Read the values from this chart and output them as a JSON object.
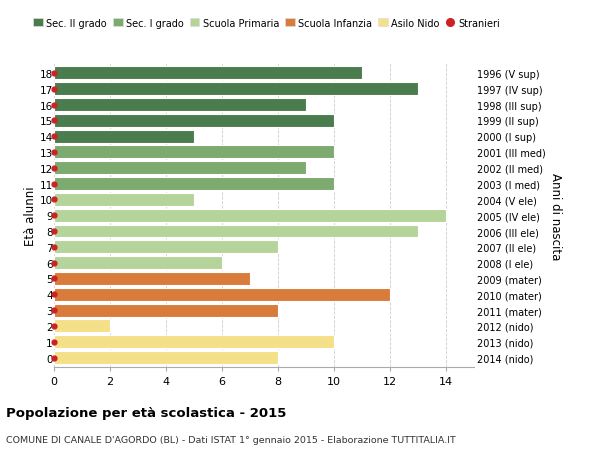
{
  "ages": [
    18,
    17,
    16,
    15,
    14,
    13,
    12,
    11,
    10,
    9,
    8,
    7,
    6,
    5,
    4,
    3,
    2,
    1,
    0
  ],
  "right_labels": [
    "1996 (V sup)",
    "1997 (IV sup)",
    "1998 (III sup)",
    "1999 (II sup)",
    "2000 (I sup)",
    "2001 (III med)",
    "2002 (II med)",
    "2003 (I med)",
    "2004 (V ele)",
    "2005 (IV ele)",
    "2006 (III ele)",
    "2007 (II ele)",
    "2008 (I ele)",
    "2009 (mater)",
    "2010 (mater)",
    "2011 (mater)",
    "2012 (nido)",
    "2013 (nido)",
    "2014 (nido)"
  ],
  "values": [
    11,
    13,
    9,
    10,
    5,
    10,
    9,
    10,
    5,
    14,
    13,
    8,
    6,
    7,
    12,
    8,
    2,
    10,
    8
  ],
  "bar_colors": [
    "#4a7c4e",
    "#4a7c4e",
    "#4a7c4e",
    "#4a7c4e",
    "#4a7c4e",
    "#7daa6e",
    "#7daa6e",
    "#7daa6e",
    "#b5d49a",
    "#b5d49a",
    "#b5d49a",
    "#b5d49a",
    "#b5d49a",
    "#d97b3a",
    "#d97b3a",
    "#d97b3a",
    "#f5e08a",
    "#f5e08a",
    "#f5e08a"
  ],
  "legend_labels": [
    "Sec. II grado",
    "Sec. I grado",
    "Scuola Primaria",
    "Scuola Infanzia",
    "Asilo Nido",
    "Stranieri"
  ],
  "legend_colors": [
    "#4a7c4e",
    "#7daa6e",
    "#b5d49a",
    "#d97b3a",
    "#f5e08a",
    "#cc2222"
  ],
  "title": "Popolazione per età scolastica - 2015",
  "subtitle": "COMUNE DI CANALE D'AGORDO (BL) - Dati ISTAT 1° gennaio 2015 - Elaborazione TUTTITALIA.IT",
  "ylabel_left": "Età alunni",
  "ylabel_right": "Anni di nascita",
  "xlim": [
    0,
    15
  ],
  "xticks": [
    0,
    2,
    4,
    6,
    8,
    10,
    12,
    14
  ],
  "background_color": "#ffffff",
  "grid_color": "#cccccc",
  "stranieri_dot_color": "#cc2222",
  "bar_height": 0.82
}
